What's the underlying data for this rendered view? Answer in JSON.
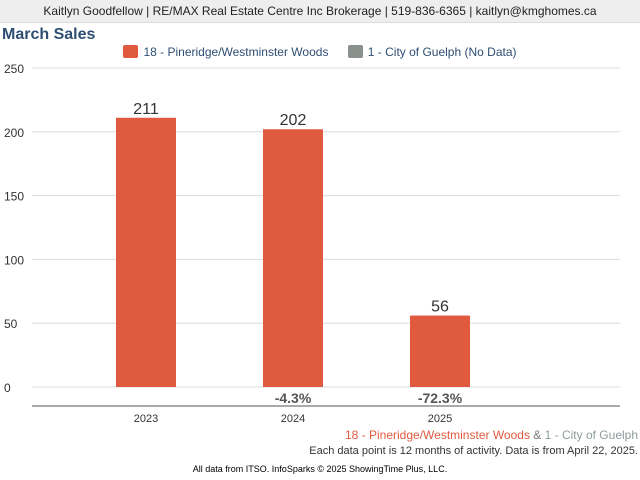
{
  "header": {
    "text": "Kaitlyn Goodfellow | RE/MAX Real Estate Centre Inc Brokerage | 519-836-6365 | kaitlyn@kmghomes.ca"
  },
  "legend": {
    "items": [
      {
        "label": "18 - Pineridge/Westminster Woods",
        "color": "#e05a3f"
      },
      {
        "label": "1 - City of Guelph (No Data)",
        "color": "#8a918d"
      }
    ]
  },
  "chart_data": {
    "type": "bar",
    "title": "March Sales",
    "xlabel": "",
    "ylabel": "",
    "categories": [
      "2023",
      "2024",
      "2025"
    ],
    "series": [
      {
        "name": "18 - Pineridge/Westminster Woods",
        "values": [
          211,
          202,
          56
        ],
        "color": "#e05a3f"
      }
    ],
    "data_labels": [
      "211",
      "202",
      "56"
    ],
    "change_labels": [
      "",
      "-4.3%",
      "-72.3%"
    ],
    "ylim": [
      0,
      250
    ],
    "yticks": [
      0,
      50,
      100,
      150,
      200,
      250
    ],
    "grid": true,
    "legend_position": "top"
  },
  "footer": {
    "series1": "18 - Pineridge/Westminster Woods",
    "amp": " & ",
    "series2": "1 - City of Guelph",
    "note": "Each data point is 12 months of activity. Data is from April 22, 2025.",
    "credits": "All data from ITSO. InfoSparks © 2025 ShowingTime Plus, LLC."
  }
}
